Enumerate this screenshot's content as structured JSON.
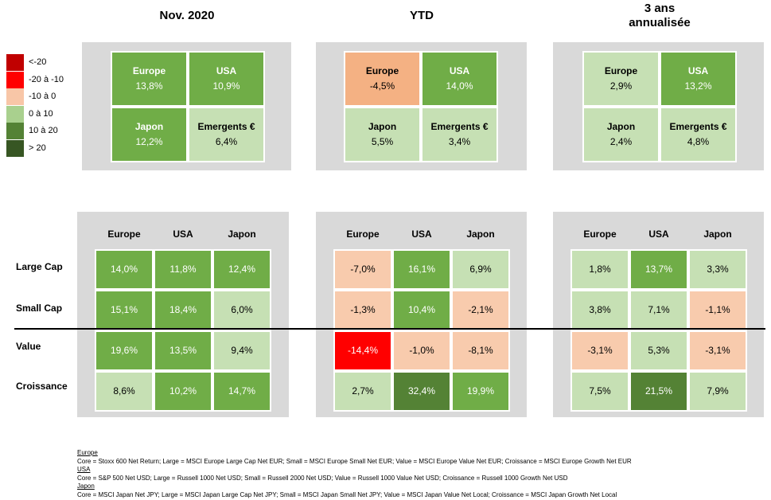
{
  "columns": [
    {
      "title_lines": [
        "Nov. 2020"
      ]
    },
    {
      "title_lines": [
        "YTD"
      ]
    },
    {
      "title_lines": [
        "3 ans",
        "annualisée"
      ]
    }
  ],
  "legend": [
    {
      "label": "<-20",
      "color": "#c00000"
    },
    {
      "label": "-20 à -10",
      "color": "#ff0000"
    },
    {
      "label": "-10 à 0",
      "color": "#f8c6a7"
    },
    {
      "label": "0 à 10",
      "color": "#a9d08e"
    },
    {
      "label": "10 à 20",
      "color": "#548235"
    },
    {
      "label": "> 20",
      "color": "#375623"
    }
  ],
  "chart_data": [
    {
      "type": "heatmap",
      "title": "Nov. 2020",
      "cells": [
        {
          "name": "Europe",
          "value": "13,8%",
          "color": "#70ad47",
          "text_color": "#ffffff"
        },
        {
          "name": "USA",
          "value": "10,9%",
          "color": "#70ad47",
          "text_color": "#ffffff"
        },
        {
          "name": "Japon",
          "value": "12,2%",
          "color": "#70ad47",
          "text_color": "#ffffff"
        },
        {
          "name": "Emergents €",
          "value": "6,4%",
          "color": "#c6e0b4",
          "text_color": "#000000"
        }
      ],
      "matrix": {
        "columns": [
          "Europe",
          "USA",
          "Japon"
        ],
        "rows": [
          "Large Cap",
          "Small Cap",
          "Value",
          "Croissance"
        ],
        "values": [
          [
            "14,0%",
            "11,8%",
            "12,4%"
          ],
          [
            "15,1%",
            "18,4%",
            "6,0%"
          ],
          [
            "19,6%",
            "13,5%",
            "9,4%"
          ],
          [
            "8,6%",
            "10,2%",
            "14,7%"
          ]
        ],
        "colors": [
          [
            "#70ad47",
            "#70ad47",
            "#70ad47"
          ],
          [
            "#70ad47",
            "#70ad47",
            "#c6e0b4"
          ],
          [
            "#70ad47",
            "#70ad47",
            "#c6e0b4"
          ],
          [
            "#c6e0b4",
            "#70ad47",
            "#70ad47"
          ]
        ],
        "text_colors": [
          [
            "#ffffff",
            "#ffffff",
            "#ffffff"
          ],
          [
            "#ffffff",
            "#ffffff",
            "#000000"
          ],
          [
            "#ffffff",
            "#ffffff",
            "#000000"
          ],
          [
            "#000000",
            "#ffffff",
            "#ffffff"
          ]
        ]
      }
    },
    {
      "type": "heatmap",
      "title": "YTD",
      "cells": [
        {
          "name": "Europe",
          "value": "-4,5%",
          "color": "#f4b183",
          "text_color": "#000000"
        },
        {
          "name": "USA",
          "value": "14,0%",
          "color": "#70ad47",
          "text_color": "#ffffff"
        },
        {
          "name": "Japon",
          "value": "5,5%",
          "color": "#c6e0b4",
          "text_color": "#000000"
        },
        {
          "name": "Emergents €",
          "value": "3,4%",
          "color": "#c6e0b4",
          "text_color": "#000000"
        }
      ],
      "matrix": {
        "columns": [
          "Europe",
          "USA",
          "Japon"
        ],
        "rows": [
          "Large Cap",
          "Small Cap",
          "Value",
          "Croissance"
        ],
        "values": [
          [
            "-7,0%",
            "16,1%",
            "6,9%"
          ],
          [
            "-1,3%",
            "10,4%",
            "-2,1%"
          ],
          [
            "-14,4%",
            "-1,0%",
            "-8,1%"
          ],
          [
            "2,7%",
            "32,4%",
            "19,9%"
          ]
        ],
        "colors": [
          [
            "#f8cbad",
            "#70ad47",
            "#c6e0b4"
          ],
          [
            "#f8cbad",
            "#70ad47",
            "#f8cbad"
          ],
          [
            "#ff0000",
            "#f8cbad",
            "#f8cbad"
          ],
          [
            "#c6e0b4",
            "#548235",
            "#70ad47"
          ]
        ],
        "text_colors": [
          [
            "#000000",
            "#ffffff",
            "#000000"
          ],
          [
            "#000000",
            "#ffffff",
            "#000000"
          ],
          [
            "#ffffff",
            "#000000",
            "#000000"
          ],
          [
            "#000000",
            "#ffffff",
            "#ffffff"
          ]
        ]
      }
    },
    {
      "type": "heatmap",
      "title": "3 ans annualisée",
      "cells": [
        {
          "name": "Europe",
          "value": "2,9%",
          "color": "#c6e0b4",
          "text_color": "#000000"
        },
        {
          "name": "USA",
          "value": "13,2%",
          "color": "#70ad47",
          "text_color": "#ffffff"
        },
        {
          "name": "Japon",
          "value": "2,4%",
          "color": "#c6e0b4",
          "text_color": "#000000"
        },
        {
          "name": "Emergents €",
          "value": "4,8%",
          "color": "#c6e0b4",
          "text_color": "#000000"
        }
      ],
      "matrix": {
        "columns": [
          "Europe",
          "USA",
          "Japon"
        ],
        "rows": [
          "Large Cap",
          "Small Cap",
          "Value",
          "Croissance"
        ],
        "values": [
          [
            "1,8%",
            "13,7%",
            "3,3%"
          ],
          [
            "3,8%",
            "7,1%",
            "-1,1%"
          ],
          [
            "-3,1%",
            "5,3%",
            "-3,1%"
          ],
          [
            "7,5%",
            "21,5%",
            "7,9%"
          ]
        ],
        "colors": [
          [
            "#c6e0b4",
            "#70ad47",
            "#c6e0b4"
          ],
          [
            "#c6e0b4",
            "#c6e0b4",
            "#f8cbad"
          ],
          [
            "#f8cbad",
            "#c6e0b4",
            "#f8cbad"
          ],
          [
            "#c6e0b4",
            "#548235",
            "#c6e0b4"
          ]
        ],
        "text_colors": [
          [
            "#000000",
            "#ffffff",
            "#000000"
          ],
          [
            "#000000",
            "#000000",
            "#000000"
          ],
          [
            "#000000",
            "#000000",
            "#000000"
          ],
          [
            "#000000",
            "#ffffff",
            "#000000"
          ]
        ]
      }
    }
  ],
  "notes": [
    {
      "text": "Europe",
      "underline": true
    },
    {
      "text": "Core = Stoxx 600 Net Return; Large = MSCI Europe Large Cap Net EUR; Small = MSCI Europe Small Net EUR; Value = MSCI Europe Value Net EUR; Croissance = MSCI Europe Growth Net EUR",
      "underline": false
    },
    {
      "text": "USA",
      "underline": true
    },
    {
      "text": "Core = S&P 500 Net USD; Large = Russell 1000 Net USD; Small = Russell 2000 Net USD; Value = Russell 1000 Value Net USD; Croissance = Russell 1000 Growth Net USD",
      "underline": false
    },
    {
      "text": "Japon",
      "underline": true
    },
    {
      "text": "Core = MSCI Japan Net JPY; Large = MSCI Japan Large Cap Net JPY; Small = MSCI Japan Small Net JPY; Value = MSCI Japan Value Net Local; Croissance = MSCI Japan Growth Net Local",
      "underline": false
    }
  ]
}
